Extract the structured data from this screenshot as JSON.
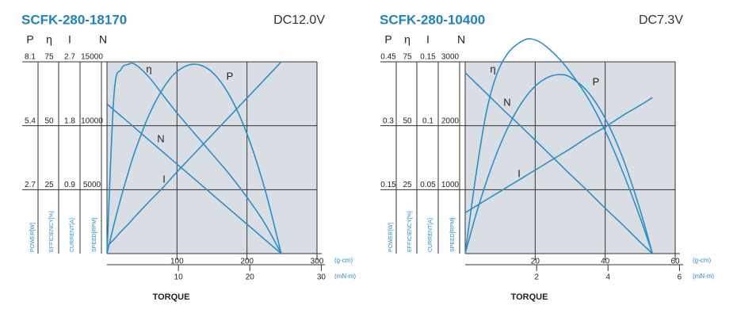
{
  "chart_data": [
    {
      "type": "line",
      "title": "SCFK-280-18170",
      "subtitle": "DC12.0V",
      "xlabel": "TORQUE",
      "xunit": "(g-cm)",
      "x2unit": "(mN-m)",
      "xlim": [
        0,
        300
      ],
      "xticks": [
        100,
        200,
        300
      ],
      "x2lim": [
        0,
        29.4
      ],
      "x2ticks": [
        10,
        20,
        30
      ],
      "y_axes": [
        {
          "label": "P",
          "title": "POWER[W]",
          "lim": [
            0,
            8.1
          ],
          "ticks": [
            2.7,
            5.4,
            8.1
          ]
        },
        {
          "label": "η",
          "title": "EFFICIENCY[%]",
          "lim": [
            0,
            75
          ],
          "ticks": [
            25,
            50,
            75
          ]
        },
        {
          "label": "I",
          "title": "CURRENT[A]",
          "lim": [
            0,
            2.7
          ],
          "ticks": [
            0.9,
            1.8,
            2.7
          ]
        },
        {
          "label": "N",
          "title": "SPEED[RPM]",
          "lim": [
            0,
            15000
          ],
          "ticks": [
            5000,
            10000,
            15000
          ]
        }
      ],
      "x": [
        0,
        10,
        20,
        30,
        40,
        60,
        80,
        100,
        125,
        150,
        175,
        200,
        225,
        249
      ],
      "series": [
        {
          "name": "P",
          "color": "#2a8fc8",
          "values": [
            0,
            1.23,
            2.36,
            3.38,
            4.32,
            5.85,
            6.97,
            7.69,
            8.0,
            7.67,
            6.68,
            5.06,
            2.78,
            0
          ]
        },
        {
          "name": "η",
          "color": "#2a8fc8",
          "values": [
            0,
            62,
            72,
            74,
            74,
            69,
            62,
            55,
            47,
            39,
            31,
            22,
            12,
            0
          ]
        },
        {
          "name": "I",
          "color": "#2a8fc8",
          "values": [
            0.1,
            0.2,
            0.31,
            0.41,
            0.52,
            0.73,
            0.93,
            1.15,
            1.41,
            1.67,
            1.93,
            2.19,
            2.45,
            2.7
          ]
        },
        {
          "name": "N",
          "color": "#2a8fc8",
          "values": [
            11700,
            11230,
            10760,
            10300,
            9820,
            8880,
            7940,
            7000,
            5830,
            4650,
            3470,
            2300,
            1120,
            0
          ]
        }
      ]
    },
    {
      "type": "line",
      "title": "SCFK-280-10400",
      "subtitle": "DC7.3V",
      "xlabel": "TORQUE",
      "xunit": "(g-cm)",
      "x2unit": "(mN-m)",
      "xlim": [
        0,
        60
      ],
      "xticks": [
        20,
        40,
        60
      ],
      "x2lim": [
        0,
        5.88
      ],
      "x2ticks": [
        2,
        4,
        6
      ],
      "y_axes": [
        {
          "label": "P",
          "title": "POWER[W]",
          "lim": [
            0,
            0.45
          ],
          "ticks": [
            0.15,
            0.3,
            0.45
          ]
        },
        {
          "label": "η",
          "title": "EFFICIENCY[%]",
          "lim": [
            0,
            75
          ],
          "ticks": [
            25,
            50,
            75
          ]
        },
        {
          "label": "I",
          "title": "CURRENT[A]",
          "lim": [
            0,
            0.15
          ],
          "ticks": [
            0.05,
            0.1,
            0.15
          ]
        },
        {
          "label": "N",
          "title": "SPEED[RPM]",
          "lim": [
            0,
            3000
          ],
          "ticks": [
            1000,
            2000,
            3000
          ]
        }
      ],
      "x": [
        0,
        3,
        6,
        9,
        12,
        15,
        18,
        21,
        24,
        27,
        30,
        35,
        40,
        45,
        50,
        53.5
      ],
      "series": [
        {
          "name": "P",
          "color": "#2a8fc8",
          "values": [
            0,
            0.089,
            0.167,
            0.235,
            0.292,
            0.339,
            0.375,
            0.4,
            0.415,
            0.42,
            0.414,
            0.38,
            0.317,
            0.225,
            0.102,
            0
          ]
        },
        {
          "name": "η",
          "color": "#2a8fc8",
          "values": [
            0,
            30,
            55,
            70,
            78,
            82,
            84,
            83,
            80,
            76,
            71,
            61,
            48,
            32,
            14,
            0
          ]
        },
        {
          "name": "I",
          "color": "#2a8fc8",
          "values": [
            0.032,
            0.037,
            0.042,
            0.047,
            0.052,
            0.057,
            0.062,
            0.067,
            0.072,
            0.077,
            0.082,
            0.091,
            0.099,
            0.108,
            0.116,
            0.122
          ]
        },
        {
          "name": "N",
          "color": "#2a8fc8",
          "values": [
            2830,
            2670,
            2510,
            2350,
            2190,
            2040,
            1880,
            1720,
            1560,
            1400,
            1240,
            980,
            710,
            450,
            180,
            0
          ]
        }
      ]
    }
  ]
}
